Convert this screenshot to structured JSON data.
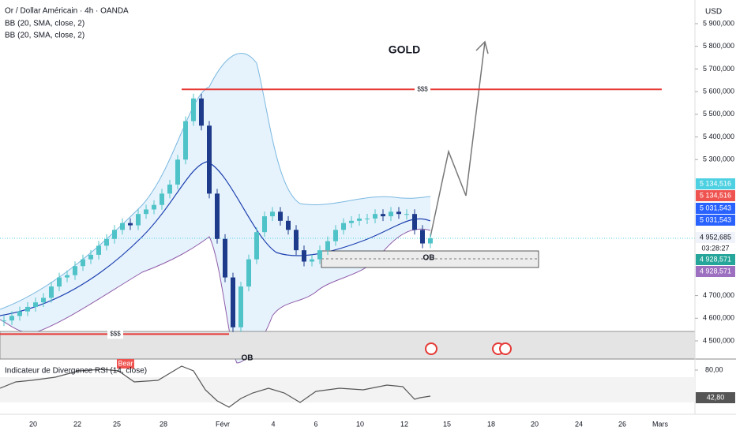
{
  "header": {
    "symbol": "Or / Dollar Américain · 4h · OANDA",
    "indicators": [
      "BB (20, SMA, close, 2)",
      "BB (20, SMA, close, 2)"
    ],
    "currency": "USD"
  },
  "chart_data": {
    "type": "candlestick",
    "closes": [
      4590,
      4610,
      4630,
      4650,
      4670,
      4690,
      4740,
      4780,
      4790,
      4830,
      4860,
      4880,
      4920,
      4950,
      4990,
      5020,
      5010,
      5060,
      5080,
      5100,
      5150,
      5190,
      5300,
      5470,
      5570,
      5450,
      5150,
      4950,
      4780,
      4560,
      4740,
      4860,
      4980,
      5050,
      5070,
      5030,
      4990,
      4900,
      4850,
      4860,
      4900,
      4940,
      4990,
      5020,
      5030,
      5040,
      5040,
      5060,
      5050,
      5070,
      5060,
      5060,
      4990,
      4930,
      4953
    ],
    "up_color": "#4fc3c7",
    "down_color": "#1e3a8a",
    "ylim": [
      4400,
      6000
    ],
    "yticks": [
      {
        "value": 5900,
        "label": "5 900,000"
      },
      {
        "value": 5800,
        "label": "5 800,000"
      },
      {
        "value": 5700,
        "label": "5 700,000"
      },
      {
        "value": 5600,
        "label": "5 600,000"
      },
      {
        "value": 5500,
        "label": "5 500,000"
      },
      {
        "value": 5400,
        "label": "5 400,000"
      },
      {
        "value": 5300,
        "label": "5 300,000"
      },
      {
        "value": 4700,
        "label": "4 700,000"
      },
      {
        "value": 4600,
        "label": "4 600,000"
      },
      {
        "value": 4500,
        "label": "4 500,000"
      }
    ],
    "x_labels": [
      "20",
      "22",
      "25",
      "28",
      "Févr",
      "4",
      "6",
      "10",
      "12",
      "15",
      "18",
      "20",
      "24",
      "26",
      "Mars"
    ],
    "price_badges": [
      {
        "value": 5134.516,
        "label": "5 134,516",
        "color": "#4dd0e1"
      },
      {
        "value": 5134.516,
        "label": "5 134,516",
        "color": "#ef5350"
      },
      {
        "value": 5031.543,
        "label": "5 031,543",
        "color": "#2962ff"
      },
      {
        "value": 5031.543,
        "label": "5 031,543",
        "color": "#2962ff"
      },
      {
        "value": 4952.685,
        "label": "4 952,685",
        "color": "#f0f3fa"
      },
      {
        "value": 4928.571,
        "label": "4 928,571",
        "color": "#26a69a"
      },
      {
        "value": 4928.571,
        "label": "4 928,571",
        "color": "#9c6fc0"
      }
    ],
    "countdown": "03:28:27",
    "levels": [
      {
        "value": 5610,
        "label": "$$$"
      },
      {
        "value": 4530,
        "label": "$$$"
      }
    ],
    "annotations": {
      "title": "GOLD",
      "ob": [
        "OB",
        "OB"
      ],
      "bear": "Bear"
    },
    "rsi": {
      "title": "Indicateur de Divergence RSI (14, close)",
      "ticks": [
        {
          "value": 80,
          "label": "80,00"
        }
      ],
      "last": {
        "value": 42.8,
        "label": "42,80"
      }
    }
  }
}
